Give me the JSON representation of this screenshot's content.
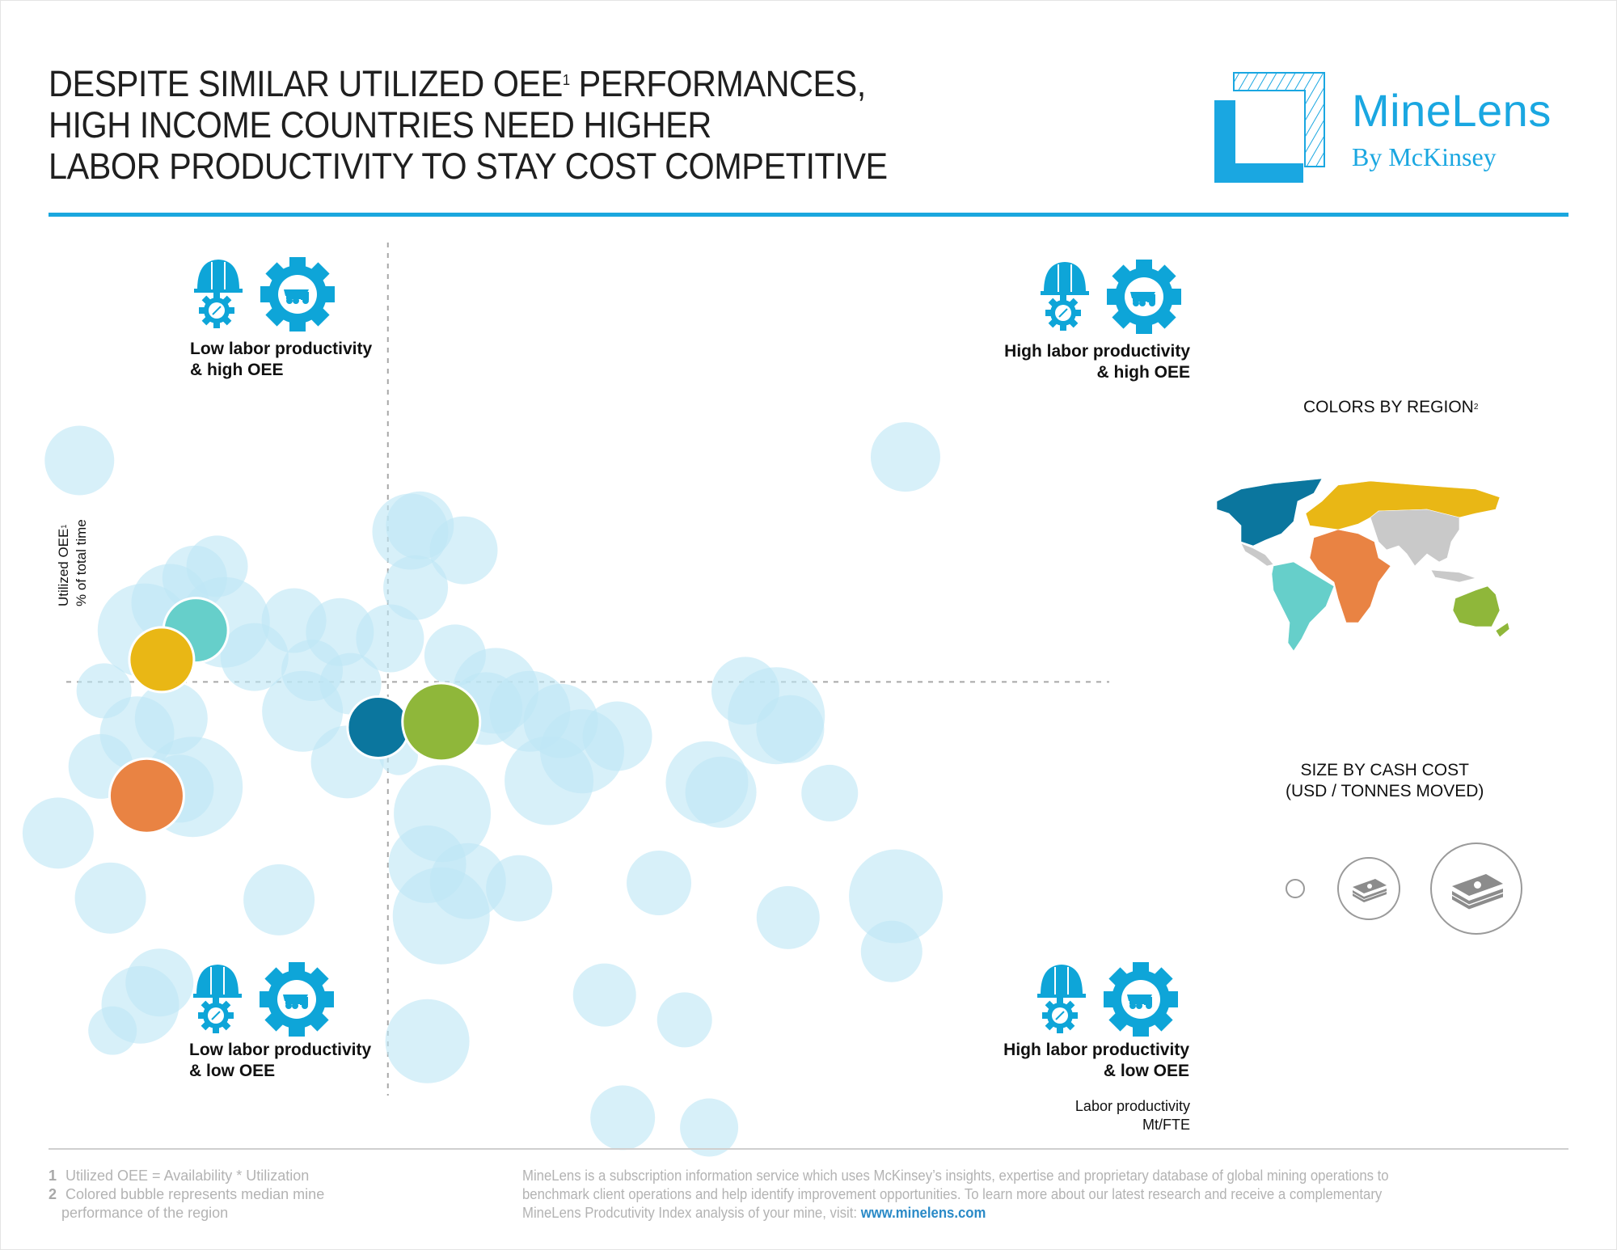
{
  "header": {
    "title_lines": [
      "DESPITE SIMILAR UTILIZED OEE",
      " PERFORMANCES,",
      "HIGH INCOME COUNTRIES NEED HIGHER",
      "LABOR PRODUCTIVITY TO STAY COST COMPETITIVE"
    ],
    "title_sup": "1",
    "logo_name": "MineLens",
    "logo_sub": "By McKinsey",
    "brand_color": "#1aa7e1"
  },
  "chart_data": {
    "type": "scatter",
    "subtype": "bubble",
    "title": "Despite similar utilized OEE performances, high income countries need higher labor productivity to stay cost competitive",
    "xlabel": "Labor productivity",
    "xlabel_unit": "Mt/FTE",
    "ylabel": "Utilized OEE",
    "ylabel_sup": "1",
    "ylabel_unit": "% of total time",
    "axis_note": "Axes are unlabeled relative scales (0-100); dashed lines mark the quadrant dividers",
    "xlim": [
      0,
      100
    ],
    "ylim": [
      0,
      100
    ],
    "x_divider": 31.8,
    "y_divider": 50.6,
    "grid": false,
    "quadrants": [
      {
        "label_line1": "Low labor productivity",
        "label_line2": "& high OEE",
        "position": "top-left"
      },
      {
        "label_line1": "High labor productivity",
        "label_line2": "& high OEE",
        "position": "top-right"
      },
      {
        "label_line1": "Low labor productivity",
        "label_line2": "& low OEE",
        "position": "bottom-left"
      },
      {
        "label_line1": "High labor productivity",
        "label_line2": "& low OEE",
        "position": "bottom-right"
      }
    ],
    "mine_color": "#bfe6f5",
    "mines": [
      {
        "x": 2.9,
        "y": 75.5,
        "size": 43
      },
      {
        "x": 9.0,
        "y": 56.4,
        "size": 58
      },
      {
        "x": 11.4,
        "y": 59.5,
        "size": 48
      },
      {
        "x": 13.7,
        "y": 62.3,
        "size": 40
      },
      {
        "x": 15.8,
        "y": 63.6,
        "size": 38
      },
      {
        "x": 16.5,
        "y": 57.3,
        "size": 56
      },
      {
        "x": 19.3,
        "y": 53.4,
        "size": 42
      },
      {
        "x": 23.0,
        "y": 57.5,
        "size": 40
      },
      {
        "x": 24.7,
        "y": 51.9,
        "size": 38
      },
      {
        "x": 23.8,
        "y": 47.3,
        "size": 50
      },
      {
        "x": 28.3,
        "y": 50.4,
        "size": 38
      },
      {
        "x": 27.3,
        "y": 56.2,
        "size": 42
      },
      {
        "x": 32.0,
        "y": 55.5,
        "size": 42
      },
      {
        "x": 28.0,
        "y": 41.6,
        "size": 45
      },
      {
        "x": 32.8,
        "y": 42.3,
        "size": 24
      },
      {
        "x": 8.3,
        "y": 44.8,
        "size": 46
      },
      {
        "x": 11.5,
        "y": 46.5,
        "size": 45
      },
      {
        "x": 12.3,
        "y": 38.6,
        "size": 42
      },
      {
        "x": 5.2,
        "y": 49.6,
        "size": 34
      },
      {
        "x": 4.9,
        "y": 41.1,
        "size": 40
      },
      {
        "x": 13.5,
        "y": 38.8,
        "size": 62
      },
      {
        "x": 0.9,
        "y": 33.6,
        "size": 44
      },
      {
        "x": 5.8,
        "y": 26.3,
        "size": 44
      },
      {
        "x": 21.6,
        "y": 26.1,
        "size": 44
      },
      {
        "x": 8.6,
        "y": 14.3,
        "size": 48
      },
      {
        "x": 10.4,
        "y": 16.8,
        "size": 42
      },
      {
        "x": 6.0,
        "y": 11.4,
        "size": 30
      },
      {
        "x": 34.8,
        "y": 68.2,
        "size": 42
      },
      {
        "x": 33.9,
        "y": 67.5,
        "size": 47
      },
      {
        "x": 38.9,
        "y": 65.4,
        "size": 42
      },
      {
        "x": 34.4,
        "y": 61.2,
        "size": 40
      },
      {
        "x": 38.1,
        "y": 53.6,
        "size": 38
      },
      {
        "x": 41.0,
        "y": 47.6,
        "size": 45
      },
      {
        "x": 41.9,
        "y": 49.6,
        "size": 53
      },
      {
        "x": 45.1,
        "y": 47.3,
        "size": 50
      },
      {
        "x": 48.0,
        "y": 46.2,
        "size": 46
      },
      {
        "x": 50.0,
        "y": 42.8,
        "size": 52
      },
      {
        "x": 46.9,
        "y": 39.5,
        "size": 55
      },
      {
        "x": 53.3,
        "y": 44.5,
        "size": 43
      },
      {
        "x": 36.9,
        "y": 35.8,
        "size": 60
      },
      {
        "x": 35.5,
        "y": 30.1,
        "size": 48
      },
      {
        "x": 39.3,
        "y": 28.2,
        "size": 47
      },
      {
        "x": 44.1,
        "y": 27.4,
        "size": 41
      },
      {
        "x": 36.8,
        "y": 24.3,
        "size": 60
      },
      {
        "x": 35.5,
        "y": 10.2,
        "size": 52
      },
      {
        "x": 57.2,
        "y": 28.0,
        "size": 40
      },
      {
        "x": 61.7,
        "y": 39.3,
        "size": 51
      },
      {
        "x": 63.0,
        "y": 38.2,
        "size": 44
      },
      {
        "x": 65.3,
        "y": 49.6,
        "size": 42
      },
      {
        "x": 68.2,
        "y": 46.8,
        "size": 60
      },
      {
        "x": 69.5,
        "y": 45.3,
        "size": 42
      },
      {
        "x": 73.2,
        "y": 38.1,
        "size": 35
      },
      {
        "x": 69.3,
        "y": 24.1,
        "size": 39
      },
      {
        "x": 52.1,
        "y": 15.4,
        "size": 39
      },
      {
        "x": 59.6,
        "y": 12.6,
        "size": 34
      },
      {
        "x": 53.8,
        "y": 1.6,
        "size": 40
      },
      {
        "x": 61.9,
        "y": 0.5,
        "size": 36
      },
      {
        "x": 80.3,
        "y": 75.9,
        "size": 43
      },
      {
        "x": 79.4,
        "y": 26.5,
        "size": 58
      },
      {
        "x": 79.0,
        "y": 20.3,
        "size": 38
      }
    ],
    "regions": [
      {
        "name": "North America",
        "color": "#0b769e",
        "x": 30.9,
        "y": 45.5,
        "size": 38
      },
      {
        "name": "South America",
        "color": "#66cfca",
        "x": 13.8,
        "y": 56.4,
        "size": 40
      },
      {
        "name": "Europe & Russia",
        "color": "#e9b715",
        "x": 10.6,
        "y": 53.1,
        "size": 40
      },
      {
        "name": "Africa",
        "color": "#e98343",
        "x": 9.2,
        "y": 37.8,
        "size": 46
      },
      {
        "name": "Australia & Oceania",
        "color": "#8fb73a",
        "x": 36.8,
        "y": 46.1,
        "size": 48
      },
      {
        "name": "Asia",
        "color": "#c9c9c9"
      }
    ]
  },
  "legend": {
    "colors_title": "COLORS BY REGION",
    "colors_sup": "2",
    "size_title_line1": "SIZE BY CASH COST",
    "size_title_line2": "(USD / TONNES MOVED)",
    "size_steps": [
      "small",
      "medium",
      "large"
    ]
  },
  "axes": {
    "y_line1": "Utilized OEE",
    "y_sup": "1",
    "y_line2": "% of total time",
    "x_line1": "Labor productivity",
    "x_line2": "Mt/FTE"
  },
  "footer": {
    "notes": [
      {
        "num": "1",
        "text": "Utilized OEE = Availability * Utilization"
      },
      {
        "num": "2",
        "text": "Colored bubble represents median mine"
      },
      {
        "num": "",
        "text": "performance of the region"
      }
    ],
    "about_line1": "MineLens is a subscription information service which uses McKinsey’s insights, expertise and proprietary database of global mining operations to",
    "about_line2": "benchmark client operations and help identify improvement opportunities. To learn more about our latest research and receive a complementary",
    "about_line3": "MineLens Prodcutivity Index analysis of your mine, visit: ",
    "link_text": "www.minelens.com",
    "link_color": "#2a8ac7"
  }
}
